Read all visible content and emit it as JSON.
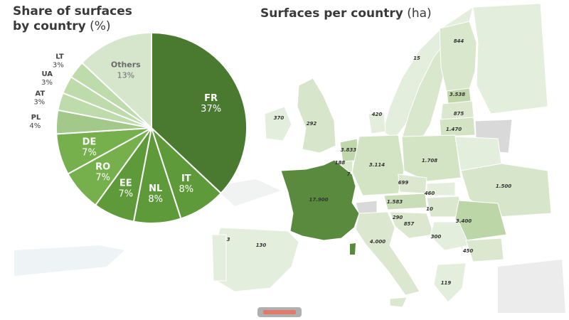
{
  "pie_title": {
    "line1": "Share of surfaces",
    "line2_bold": "by country",
    "line2_unit": " (%)"
  },
  "map_title": {
    "bold": "Surfaces per country",
    "unit": " (ha)"
  },
  "colors": {
    "fr": "#4a7a2f",
    "it_nl_ee": "#5e9a3a",
    "ro_de": "#76b04d",
    "pl": "#a3c98a",
    "at_ua_lt": "#bddbab",
    "others": "#d6e6cc",
    "map_land": "#e4eedc",
    "map_highlight": "#5a8a3e",
    "map_mid": "#c9ddb9",
    "map_grey": "#d9d9d9"
  },
  "chart_data": [
    {
      "type": "pie",
      "title": "Share of surfaces by country (%)",
      "slices": [
        {
          "label": "FR",
          "pct_label": "37%",
          "value": 37
        },
        {
          "label": "IT",
          "pct_label": "8%",
          "value": 8
        },
        {
          "label": "NL",
          "pct_label": "8%",
          "value": 8
        },
        {
          "label": "EE",
          "pct_label": "7%",
          "value": 7
        },
        {
          "label": "RO",
          "pct_label": "7%",
          "value": 7
        },
        {
          "label": "DE",
          "pct_label": "7%",
          "value": 7
        },
        {
          "label": "PL",
          "pct_label": "4%",
          "value": 4
        },
        {
          "label": "AT",
          "pct_label": "3%",
          "value": 3
        },
        {
          "label": "UA",
          "pct_label": "3%",
          "value": 3
        },
        {
          "label": "LT",
          "pct_label": "3%",
          "value": 3
        },
        {
          "label": "Others",
          "pct_label": "13%",
          "value": 13
        }
      ]
    },
    {
      "type": "map",
      "title": "Surfaces per country (ha)",
      "values": [
        "844",
        "15",
        "3.538",
        "875",
        "1.470",
        "420",
        "370",
        "292",
        "3.833",
        "188",
        "7",
        "3.114",
        "1.708",
        "699",
        "460",
        "10",
        "1.583",
        "290",
        "857",
        "300",
        "17.900",
        "1.500",
        "3.400",
        "450",
        "3",
        "130",
        "4.000",
        "119"
      ]
    }
  ]
}
